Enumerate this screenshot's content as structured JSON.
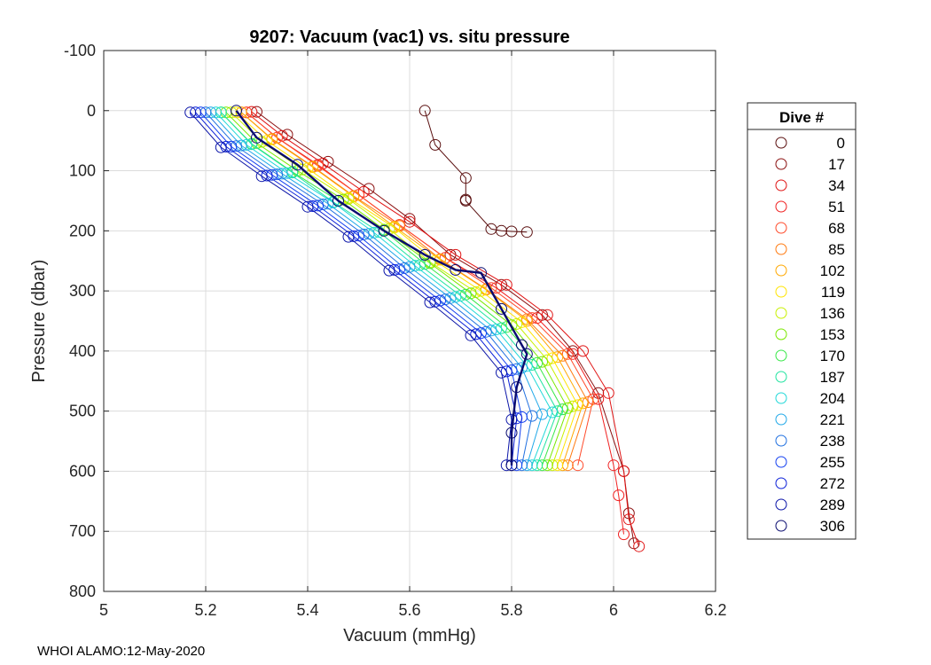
{
  "footer": "WHOI ALAMO:12-May-2020",
  "colors": {
    "axis": "#262626",
    "grid": "#dcdcdc"
  },
  "chart_data": {
    "type": "line",
    "title": "9207: Vacuum (vac1) vs. situ pressure",
    "xlabel": "Vacuum (mmHg)",
    "ylabel": "Pressure (dbar)",
    "xlim": [
      5,
      6.2
    ],
    "ylim": [
      -100,
      800
    ],
    "y_reversed": true,
    "x_ticks": [
      5,
      5.2,
      5.4,
      5.6,
      5.8,
      6,
      6.2
    ],
    "x_tick_labels": [
      "5",
      "5.2",
      "5.4",
      "5.6",
      "5.8",
      "6",
      "6.2"
    ],
    "y_ticks": [
      -100,
      0,
      100,
      200,
      300,
      400,
      500,
      600,
      700,
      800
    ],
    "y_tick_labels": [
      "-100",
      "0",
      "100",
      "200",
      "300",
      "400",
      "500",
      "600",
      "700",
      "800"
    ],
    "grid": true,
    "marker": "circle",
    "legend": {
      "title": "Dive #",
      "placement": "outside-right",
      "entries": [
        "0",
        "17",
        "34",
        "51",
        "68",
        "85",
        "102",
        "119",
        "136",
        "153",
        "170",
        "187",
        "204",
        "221",
        "238",
        "255",
        "272",
        "289",
        "306"
      ],
      "colors": [
        "#5a0f0f",
        "#8b1010",
        "#e01414",
        "#f02020",
        "#ff4a2a",
        "#ff7a10",
        "#ffa800",
        "#ffe400",
        "#c8f000",
        "#7ae800",
        "#38e848",
        "#20e4a0",
        "#20d8d8",
        "#20a8e8",
        "#2070e0",
        "#1440f0",
        "#0c20d8",
        "#0a14a8",
        "#0a0c70"
      ]
    },
    "series": [
      {
        "name": "0",
        "color": "#5a0f0f",
        "x": [
          5.63,
          5.65,
          5.71,
          5.71,
          5.71,
          5.76,
          5.78,
          5.8,
          5.83
        ],
        "y": [
          0,
          57,
          112,
          148,
          150,
          197,
          200,
          201,
          202
        ]
      },
      {
        "name": "17",
        "color": "#8b1010",
        "x": [
          5.3,
          5.36,
          5.44,
          5.52,
          5.6,
          5.68,
          5.78,
          5.86,
          5.92,
          5.97,
          6.02,
          6.03,
          6.04
        ],
        "y": [
          2,
          40,
          85,
          130,
          180,
          240,
          290,
          340,
          400,
          470,
          600,
          670,
          720
        ]
      },
      {
        "name": "34",
        "color": "#e01414",
        "x": [
          5.29,
          5.35,
          5.43,
          5.51,
          5.6,
          5.69,
          5.79,
          5.87,
          5.94,
          5.99,
          6.02,
          6.03,
          6.05
        ],
        "y": [
          2,
          42,
          88,
          135,
          185,
          240,
          290,
          340,
          400,
          470,
          600,
          680,
          725
        ]
      },
      {
        "name": "51",
        "color": "#f02020",
        "x": [
          5.28,
          5.34,
          5.42,
          5.5,
          5.58,
          5.67,
          5.77,
          5.85,
          5.92,
          5.97,
          6.0,
          6.01,
          6.02
        ],
        "y": [
          3,
          45,
          90,
          140,
          190,
          245,
          295,
          345,
          405,
          480,
          590,
          640,
          705
        ]
      },
      {
        "name": "68",
        "color": "#ff4a2a",
        "x": [
          5.28,
          5.34,
          5.42,
          5.5,
          5.58,
          5.67,
          5.76,
          5.84,
          5.91,
          5.96,
          5.93
        ],
        "y": [
          3,
          45,
          92,
          140,
          190,
          245,
          295,
          345,
          405,
          480,
          590
        ]
      },
      {
        "name": "85",
        "color": "#ff7a10",
        "x": [
          5.27,
          5.33,
          5.41,
          5.49,
          5.58,
          5.66,
          5.75,
          5.83,
          5.9,
          5.95,
          5.91
        ],
        "y": [
          3,
          47,
          93,
          142,
          192,
          247,
          297,
          347,
          408,
          485,
          590
        ]
      },
      {
        "name": "102",
        "color": "#ffa800",
        "x": [
          5.27,
          5.33,
          5.41,
          5.49,
          5.57,
          5.66,
          5.75,
          5.83,
          5.89,
          5.94,
          5.9
        ],
        "y": [
          3,
          48,
          94,
          143,
          193,
          248,
          298,
          350,
          410,
          487,
          590
        ]
      },
      {
        "name": "119",
        "color": "#ffe400",
        "x": [
          5.26,
          5.32,
          5.4,
          5.48,
          5.57,
          5.65,
          5.74,
          5.82,
          5.88,
          5.93,
          5.89
        ],
        "y": [
          3,
          50,
          96,
          145,
          195,
          250,
          300,
          352,
          412,
          490,
          590
        ]
      },
      {
        "name": "136",
        "color": "#c8f000",
        "x": [
          5.25,
          5.31,
          5.39,
          5.48,
          5.56,
          5.64,
          5.73,
          5.81,
          5.87,
          5.92,
          5.88
        ],
        "y": [
          3,
          52,
          98,
          147,
          197,
          252,
          302,
          355,
          415,
          492,
          590
        ]
      },
      {
        "name": "153",
        "color": "#7ae800",
        "x": [
          5.24,
          5.3,
          5.38,
          5.47,
          5.55,
          5.64,
          5.72,
          5.8,
          5.86,
          5.91,
          5.87
        ],
        "y": [
          3,
          54,
          100,
          148,
          198,
          254,
          304,
          357,
          418,
          495,
          590
        ]
      },
      {
        "name": "170",
        "color": "#38e848",
        "x": [
          5.23,
          5.29,
          5.37,
          5.46,
          5.55,
          5.63,
          5.71,
          5.79,
          5.85,
          5.9,
          5.86
        ],
        "y": [
          3,
          55,
          102,
          150,
          200,
          255,
          306,
          360,
          420,
          497,
          590
        ]
      },
      {
        "name": "187",
        "color": "#20e4a0",
        "x": [
          5.23,
          5.29,
          5.37,
          5.45,
          5.54,
          5.62,
          5.7,
          5.78,
          5.84,
          5.89,
          5.85
        ],
        "y": [
          3,
          56,
          103,
          152,
          202,
          257,
          308,
          362,
          423,
          500,
          590
        ]
      },
      {
        "name": "204",
        "color": "#20d8d8",
        "x": [
          5.22,
          5.28,
          5.36,
          5.45,
          5.53,
          5.61,
          5.69,
          5.77,
          5.83,
          5.88,
          5.84
        ],
        "y": [
          3,
          57,
          104,
          153,
          203,
          258,
          310,
          364,
          425,
          502,
          590
        ]
      },
      {
        "name": "221",
        "color": "#20a8e8",
        "x": [
          5.21,
          5.27,
          5.35,
          5.44,
          5.52,
          5.6,
          5.68,
          5.76,
          5.82,
          5.86,
          5.83
        ],
        "y": [
          3,
          58,
          105,
          155,
          205,
          260,
          312,
          366,
          428,
          505,
          590
        ]
      },
      {
        "name": "238",
        "color": "#2070e0",
        "x": [
          5.2,
          5.26,
          5.34,
          5.43,
          5.51,
          5.59,
          5.67,
          5.75,
          5.81,
          5.84,
          5.82
        ],
        "y": [
          3,
          59,
          106,
          156,
          206,
          262,
          314,
          368,
          430,
          508,
          590
        ]
      },
      {
        "name": "255",
        "color": "#1440f0",
        "x": [
          5.19,
          5.25,
          5.33,
          5.42,
          5.5,
          5.58,
          5.66,
          5.74,
          5.8,
          5.82,
          5.81
        ],
        "y": [
          3,
          60,
          107,
          158,
          208,
          264,
          316,
          370,
          432,
          510,
          590
        ]
      },
      {
        "name": "272",
        "color": "#0c20d8",
        "x": [
          5.18,
          5.24,
          5.32,
          5.41,
          5.49,
          5.57,
          5.65,
          5.73,
          5.79,
          5.81,
          5.8
        ],
        "y": [
          3,
          60,
          108,
          159,
          209,
          265,
          318,
          372,
          434,
          512,
          590
        ]
      },
      {
        "name": "289",
        "color": "#0a14a8",
        "x": [
          5.17,
          5.23,
          5.31,
          5.4,
          5.48,
          5.56,
          5.64,
          5.72,
          5.78,
          5.8,
          5.79
        ],
        "y": [
          3,
          61,
          109,
          160,
          210,
          266,
          319,
          374,
          436,
          514,
          590
        ]
      },
      {
        "name": "306",
        "color": "#0a0c70",
        "x": [
          5.26,
          5.3,
          5.38,
          5.46,
          5.55,
          5.63,
          5.69,
          5.74,
          5.78,
          5.82,
          5.83,
          5.81,
          5.8,
          5.8
        ],
        "y": [
          0,
          45,
          90,
          150,
          200,
          240,
          265,
          270,
          330,
          390,
          405,
          460,
          536,
          590
        ]
      }
    ]
  }
}
